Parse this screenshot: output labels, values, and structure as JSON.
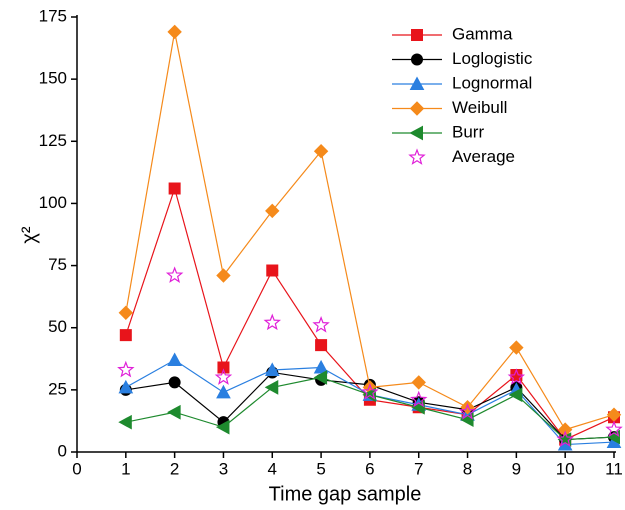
{
  "chart_data": {
    "type": "line",
    "xlabel": "Time gap sample",
    "ylabel": "χ²",
    "x": [
      1,
      2,
      3,
      4,
      5,
      6,
      7,
      8,
      9,
      10,
      11
    ],
    "xlim": [
      0,
      11
    ],
    "xticks": [
      0,
      1,
      2,
      3,
      4,
      5,
      6,
      7,
      8,
      9,
      10,
      11
    ],
    "ylim": [
      0,
      175
    ],
    "yticks": [
      0,
      25,
      50,
      75,
      100,
      125,
      150,
      175
    ],
    "legend": "upper-right",
    "series": [
      {
        "name": "Gamma",
        "color": "#e8141b",
        "marker": "square",
        "line": true,
        "values": [
          47,
          106,
          34,
          73,
          43,
          21,
          18,
          15,
          31,
          5,
          14
        ]
      },
      {
        "name": "Loglogistic",
        "color": "#000000",
        "marker": "circle",
        "line": true,
        "values": [
          25,
          28,
          12,
          32,
          29,
          27,
          20,
          17,
          26,
          5,
          6
        ]
      },
      {
        "name": "Lognormal",
        "color": "#2a7fe0",
        "marker": "triangle",
        "line": true,
        "values": [
          26,
          37,
          24,
          33,
          34,
          23,
          19,
          15,
          25,
          3,
          4
        ]
      },
      {
        "name": "Weibull",
        "color": "#f58a1b",
        "marker": "diamond",
        "line": true,
        "values": [
          56,
          169,
          71,
          97,
          121,
          26,
          28,
          18,
          42,
          9,
          15
        ]
      },
      {
        "name": "Burr",
        "color": "#1e8a2e",
        "marker": "left-triangle",
        "line": true,
        "values": [
          12,
          16,
          10,
          26,
          30,
          23,
          18,
          13,
          23,
          5,
          6
        ]
      },
      {
        "name": "Average",
        "color": "#e020d8",
        "marker": "star",
        "line": false,
        "values": [
          33,
          71,
          30,
          52,
          51,
          24,
          21,
          16,
          30,
          5,
          9
        ]
      }
    ]
  }
}
